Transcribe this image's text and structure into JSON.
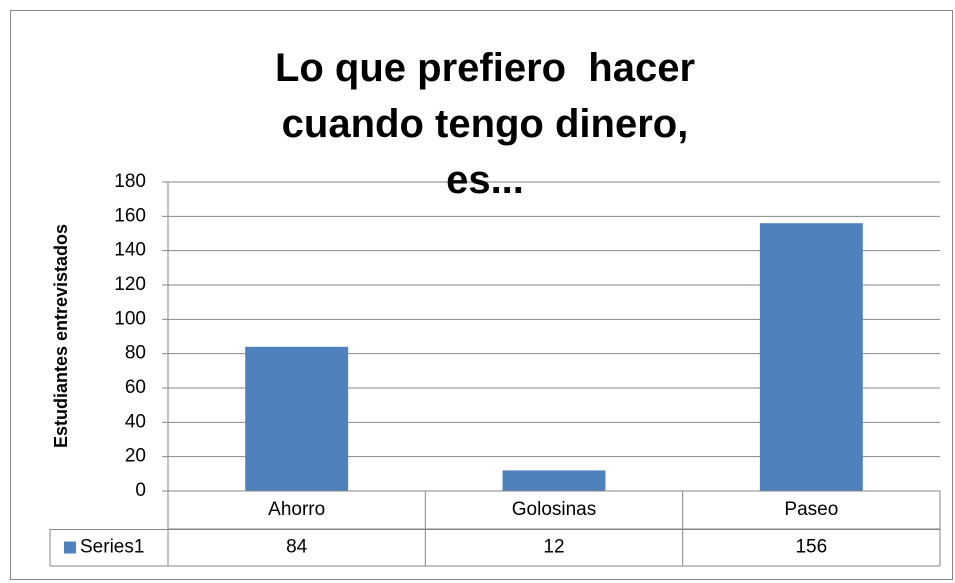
{
  "chart_data": {
    "type": "bar",
    "title": "Lo que prefiero  hacer cuando tengo dinero, es...",
    "y_label": "Estudiantes entrevistados",
    "categories": [
      "Ahorro",
      "Golosinas",
      "Paseo"
    ],
    "series": [
      {
        "name": "Series1",
        "color": "#4f81bd",
        "values": [
          84,
          12,
          156
        ]
      }
    ],
    "ylim": [
      0,
      180
    ],
    "yticks": [
      0,
      20,
      40,
      60,
      80,
      100,
      120,
      140,
      160,
      180
    ],
    "grid": true,
    "data_table": true
  }
}
